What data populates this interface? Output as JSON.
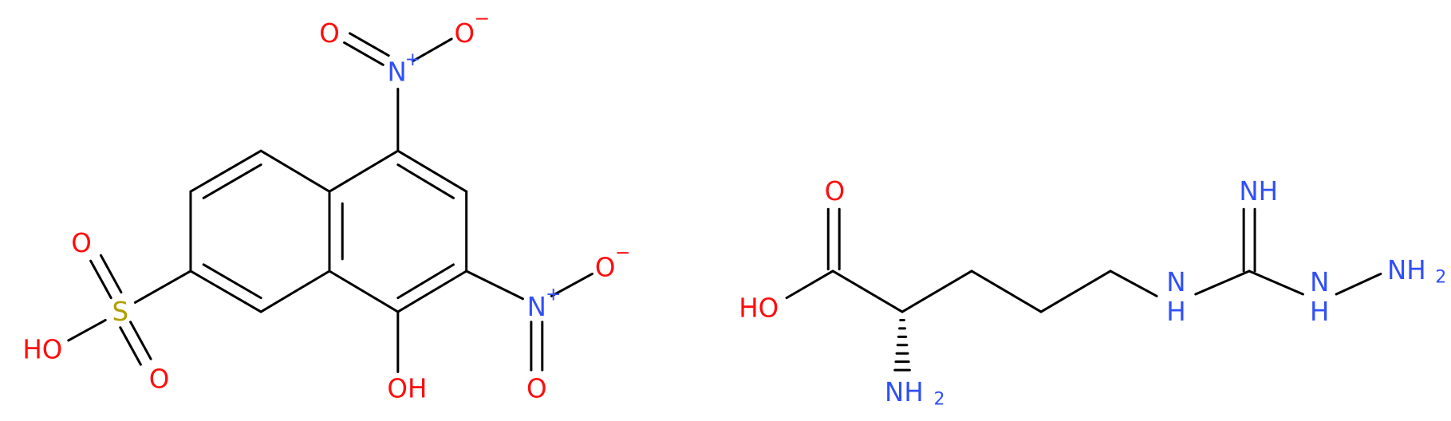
{
  "left_molecule": {
    "sulfonic_acid": {
      "s": "S",
      "o_top": "O",
      "o_bottom": "O",
      "oh": "HO"
    },
    "nitro_top": {
      "n": "N",
      "n_charge": "+",
      "o": "O",
      "o_minus": "O",
      "o_charge": "−"
    },
    "nitro_right": {
      "n": "N",
      "n_charge": "+",
      "o": "O",
      "o_minus": "O",
      "o_charge": "−"
    },
    "hydroxyl": "OH"
  },
  "right_molecule": {
    "carboxyl": {
      "o": "O",
      "oh": "HO"
    },
    "amine": {
      "nh": "NH",
      "sub": "2"
    },
    "guanidine": {
      "nh_n": "N",
      "nh_h": "H",
      "imine": "NH",
      "hydrazine_n": "N",
      "hydrazine_h": "H",
      "nh2": "NH",
      "nh2_sub": "2"
    }
  }
}
